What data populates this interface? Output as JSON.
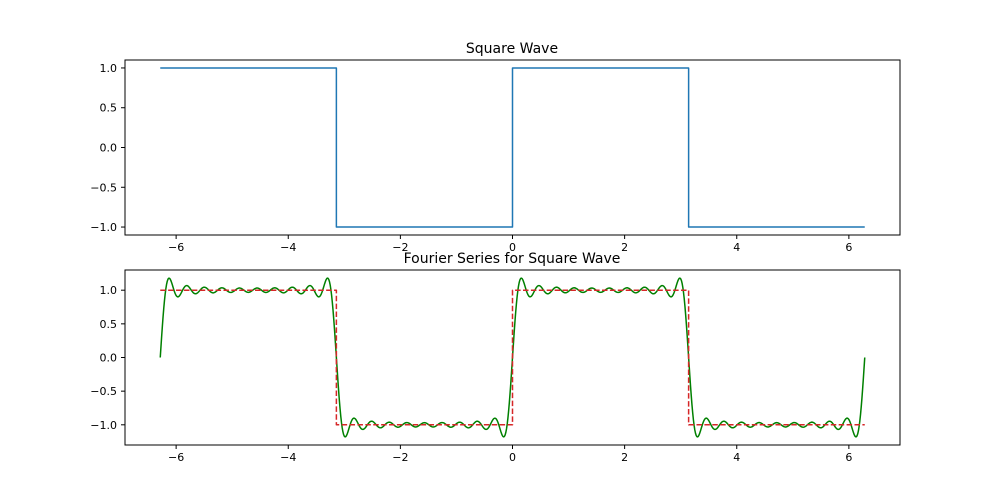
{
  "chart_data": [
    {
      "type": "line",
      "title": "Square Wave",
      "xlabel": "",
      "ylabel": "",
      "xlim": [
        -6.912,
        6.912
      ],
      "ylim": [
        -1.1,
        1.1
      ],
      "xticks": [
        -6,
        -4,
        -2,
        0,
        2,
        4,
        6
      ],
      "xtick_labels": [
        "−6",
        "−4",
        "−2",
        "0",
        "2",
        "4",
        "6"
      ],
      "yticks": [
        1.0,
        0.5,
        0.0,
        -0.5,
        -1.0
      ],
      "ytick_labels": [
        "1.0",
        "0.5",
        "0.0",
        "−0.5",
        "−1.0"
      ],
      "grid": false,
      "series": [
        {
          "color": "#1f77b4",
          "style": "solid",
          "x": [
            -6.2832,
            -3.1416,
            -3.1416,
            0.0,
            0.0,
            3.1416,
            3.1416,
            6.2832
          ],
          "y": [
            1.0,
            1.0,
            -1.0,
            -1.0,
            1.0,
            1.0,
            -1.0,
            -1.0
          ]
        }
      ]
    },
    {
      "type": "line",
      "title": "Fourier Series for Square Wave",
      "xlabel": "",
      "ylabel": "",
      "xlim": [
        -6.912,
        6.912
      ],
      "ylim": [
        -1.3,
        1.3
      ],
      "xticks": [
        -6,
        -4,
        -2,
        0,
        2,
        4,
        6
      ],
      "xtick_labels": [
        "−6",
        "−4",
        "−2",
        "0",
        "2",
        "4",
        "6"
      ],
      "yticks": [
        1.0,
        0.5,
        0.0,
        -0.5,
        -1.0
      ],
      "ytick_labels": [
        "1.0",
        "0.5",
        "0.0",
        "−0.5",
        "−1.0"
      ],
      "grid": false,
      "series": [
        {
          "color": "#008000",
          "style": "solid",
          "kind": "square_wave_fourier_partial_sum",
          "harmonics": 19,
          "x_range": [
            -6.2832,
            6.2832
          ],
          "samples": 1000
        },
        {
          "color": "#d62728",
          "style": "dashed",
          "x": [
            -6.2832,
            -3.1416,
            -3.1416,
            0.0,
            0.0,
            3.1416,
            3.1416,
            6.2832
          ],
          "y": [
            1.0,
            1.0,
            -1.0,
            -1.0,
            1.0,
            1.0,
            -1.0,
            -1.0
          ]
        }
      ]
    }
  ]
}
